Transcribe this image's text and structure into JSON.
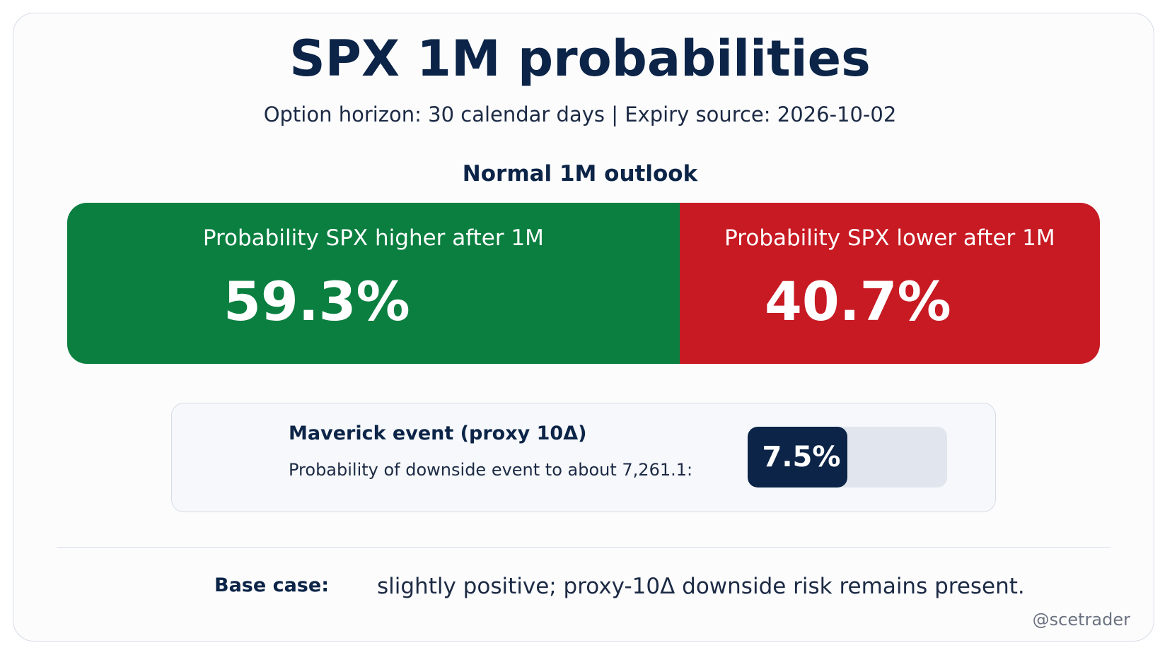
{
  "header": {
    "title": "SPX 1M probabilities",
    "subtitle": "Option horizon: 30 calendar days | Expiry source: 2026-10-02"
  },
  "outlook": {
    "title": "Normal 1M outlook",
    "higher": {
      "label": "Probability SPX higher after 1M",
      "value_text": "59.3%",
      "value": 59.3,
      "color": "#0a7f40"
    },
    "lower": {
      "label": "Probability SPX lower after 1M",
      "value_text": "40.7%",
      "value": 40.7,
      "color": "#c71a23"
    }
  },
  "maverick": {
    "title": "Maverick event (proxy 10Δ)",
    "description": "Probability of downside event to about 7,261.1:",
    "value_text": "7.5%",
    "value": 7.5,
    "fill_color": "#0b2447",
    "track_color": "#e1e5ed"
  },
  "base_case": {
    "label": "Base case:",
    "text": "slightly positive; proxy-10Δ downside risk remains present."
  },
  "footer": {
    "handle": "@scetrader"
  }
}
